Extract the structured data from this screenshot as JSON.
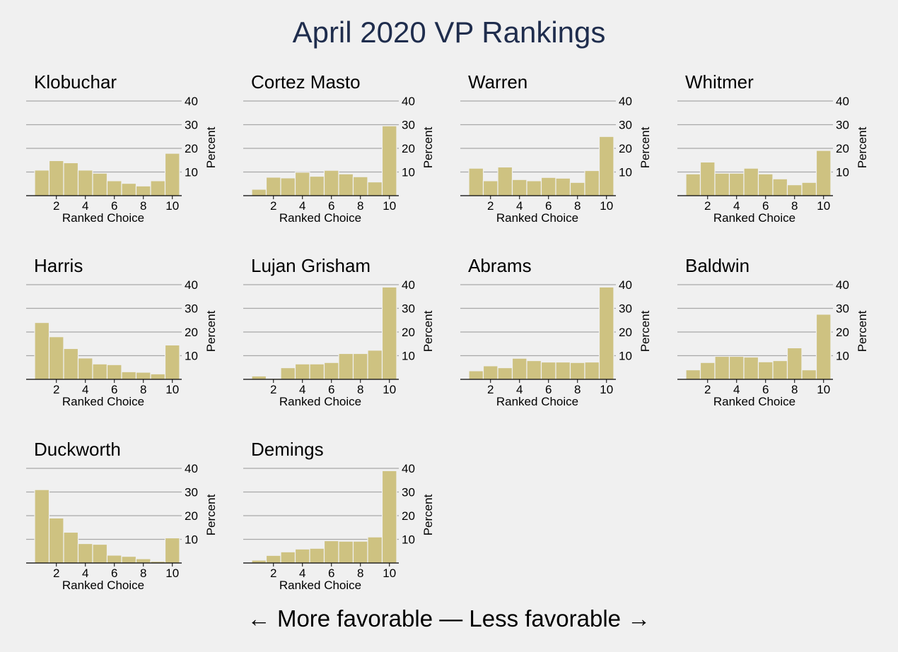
{
  "title": "April 2020 VP Rankings",
  "footer": "← More favorable — Less favorable →",
  "colors": {
    "bar_fill": "#cec281",
    "bar_stroke": "#f0f0f0",
    "grid": "#a8a8a8",
    "title": "#1f2d4d",
    "background": "#f0f0f0"
  },
  "chart_data": [
    {
      "type": "bar",
      "title": "Klobuchar",
      "xlabel": "Ranked Choice",
      "ylabel": "Percent",
      "categories": [
        1,
        2,
        3,
        4,
        5,
        6,
        7,
        8,
        9,
        10
      ],
      "values": [
        10.8,
        14.8,
        13.9,
        10.8,
        9.5,
        6.3,
        5.2,
        4.1,
        6.3,
        17.9
      ],
      "xticks": [
        2,
        4,
        6,
        8,
        10
      ],
      "yticks": [
        10,
        20,
        30,
        40
      ],
      "ylim": [
        0,
        40
      ],
      "grid": true
    },
    {
      "type": "bar",
      "title": "Cortez Masto",
      "xlabel": "Ranked Choice",
      "ylabel": "Percent",
      "categories": [
        1,
        2,
        3,
        4,
        5,
        6,
        7,
        8,
        9,
        10
      ],
      "values": [
        2.7,
        7.8,
        7.5,
        9.9,
        8.2,
        10.7,
        9.2,
        8.0,
        5.8,
        29.5
      ],
      "xticks": [
        2,
        4,
        6,
        8,
        10
      ],
      "yticks": [
        10,
        20,
        30,
        40
      ],
      "ylim": [
        0,
        40
      ],
      "grid": true
    },
    {
      "type": "bar",
      "title": "Warren",
      "xlabel": "Ranked Choice",
      "ylabel": "Percent",
      "categories": [
        1,
        2,
        3,
        4,
        5,
        6,
        7,
        8,
        9,
        10
      ],
      "values": [
        11.6,
        6.3,
        12.1,
        6.8,
        6.3,
        7.7,
        7.4,
        5.6,
        10.6,
        25.0
      ],
      "xticks": [
        2,
        4,
        6,
        8,
        10
      ],
      "yticks": [
        10,
        20,
        30,
        40
      ],
      "ylim": [
        0,
        40
      ],
      "grid": true
    },
    {
      "type": "bar",
      "title": "Whitmer",
      "xlabel": "Ranked Choice",
      "ylabel": "Percent",
      "categories": [
        1,
        2,
        3,
        4,
        5,
        6,
        7,
        8,
        9,
        10
      ],
      "values": [
        9.2,
        14.2,
        9.5,
        9.5,
        11.6,
        9.2,
        7.1,
        4.6,
        5.6,
        19.1
      ],
      "xticks": [
        2,
        4,
        6,
        8,
        10
      ],
      "yticks": [
        10,
        20,
        30,
        40
      ],
      "ylim": [
        0,
        40
      ],
      "grid": true
    },
    {
      "type": "bar",
      "title": "Harris",
      "xlabel": "Ranked Choice",
      "ylabel": "Percent",
      "categories": [
        1,
        2,
        3,
        4,
        5,
        6,
        7,
        8,
        9,
        10
      ],
      "values": [
        24.0,
        18.0,
        13.0,
        9.0,
        6.5,
        6.2,
        3.2,
        3.0,
        2.3,
        14.5
      ],
      "xticks": [
        2,
        4,
        6,
        8,
        10
      ],
      "yticks": [
        10,
        20,
        30,
        40
      ],
      "ylim": [
        0,
        40
      ],
      "grid": true
    },
    {
      "type": "bar",
      "title": "Lujan Grisham",
      "xlabel": "Ranked Choice",
      "ylabel": "Percent",
      "categories": [
        1,
        2,
        3,
        4,
        5,
        6,
        7,
        8,
        9,
        10
      ],
      "values": [
        1.4,
        0.4,
        4.9,
        6.5,
        6.5,
        7.1,
        10.9,
        10.9,
        12.3,
        39.0
      ],
      "xticks": [
        2,
        4,
        6,
        8,
        10
      ],
      "yticks": [
        10,
        20,
        30,
        40
      ],
      "ylim": [
        0,
        40
      ],
      "grid": true
    },
    {
      "type": "bar",
      "title": "Abrams",
      "xlabel": "Ranked Choice",
      "ylabel": "Percent",
      "categories": [
        1,
        2,
        3,
        4,
        5,
        6,
        7,
        8,
        9,
        10
      ],
      "values": [
        3.6,
        5.7,
        4.9,
        8.9,
        7.9,
        7.3,
        7.3,
        7.1,
        7.3,
        39.0
      ],
      "xticks": [
        2,
        4,
        6,
        8,
        10
      ],
      "yticks": [
        10,
        20,
        30,
        40
      ],
      "ylim": [
        0,
        40
      ],
      "grid": true
    },
    {
      "type": "bar",
      "title": "Baldwin",
      "xlabel": "Ranked Choice",
      "ylabel": "Percent",
      "categories": [
        1,
        2,
        3,
        4,
        5,
        6,
        7,
        8,
        9,
        10
      ],
      "values": [
        4.0,
        7.1,
        9.7,
        9.7,
        9.4,
        7.4,
        7.9,
        13.3,
        4.0,
        27.5
      ],
      "xticks": [
        2,
        4,
        6,
        8,
        10
      ],
      "yticks": [
        10,
        20,
        30,
        40
      ],
      "ylim": [
        0,
        40
      ],
      "grid": true
    },
    {
      "type": "bar",
      "title": "Duckworth",
      "xlabel": "Ranked Choice",
      "ylabel": "Percent",
      "categories": [
        1,
        2,
        3,
        4,
        5,
        6,
        7,
        8,
        9,
        10
      ],
      "values": [
        31.0,
        19.0,
        13.0,
        8.2,
        7.9,
        3.3,
        2.8,
        1.8,
        0.7,
        10.6
      ],
      "xticks": [
        2,
        4,
        6,
        8,
        10
      ],
      "yticks": [
        10,
        20,
        30,
        40
      ],
      "ylim": [
        0,
        40
      ],
      "grid": true
    },
    {
      "type": "bar",
      "title": "Demings",
      "xlabel": "Ranked Choice",
      "ylabel": "Percent",
      "categories": [
        1,
        2,
        3,
        4,
        5,
        6,
        7,
        8,
        9,
        10
      ],
      "values": [
        1.2,
        3.2,
        4.7,
        5.9,
        6.2,
        9.4,
        9.2,
        9.2,
        11.0,
        39.0
      ],
      "xticks": [
        2,
        4,
        6,
        8,
        10
      ],
      "yticks": [
        10,
        20,
        30,
        40
      ],
      "ylim": [
        0,
        40
      ],
      "grid": true
    }
  ]
}
